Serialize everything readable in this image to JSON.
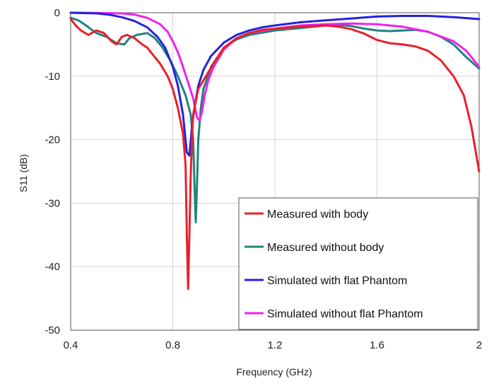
{
  "chart_data": {
    "type": "line",
    "title": "",
    "xlabel": "Frequency (GHz)",
    "ylabel": "S11 (dB)",
    "xlim": [
      0.4,
      2.0
    ],
    "ylim": [
      -50,
      0
    ],
    "xticks": [
      0.4,
      0.8,
      1.2,
      1.6,
      2.0
    ],
    "xtick_labels": [
      "0.4",
      "0.8",
      "1.2",
      "1.6",
      "2"
    ],
    "yticks": [
      0,
      -10,
      -20,
      -30,
      -40,
      -50
    ],
    "ytick_labels": [
      "0",
      "-10",
      "-20",
      "-30",
      "-40",
      "-50"
    ],
    "grid": true,
    "legend_position": "bottom-right",
    "series": [
      {
        "name": "Measured with body",
        "color": "#e8202a",
        "x": [
          0.4,
          0.42,
          0.44,
          0.47,
          0.5,
          0.53,
          0.56,
          0.58,
          0.6,
          0.62,
          0.65,
          0.68,
          0.7,
          0.72,
          0.75,
          0.78,
          0.8,
          0.82,
          0.84,
          0.85,
          0.855,
          0.86,
          0.865,
          0.87,
          0.875,
          0.88,
          0.9,
          0.93,
          0.96,
          1.0,
          1.05,
          1.1,
          1.15,
          1.2,
          1.3,
          1.4,
          1.45,
          1.5,
          1.55,
          1.6,
          1.65,
          1.7,
          1.75,
          1.8,
          1.85,
          1.9,
          1.94,
          1.97,
          2.0
        ],
        "y": [
          -1.0,
          -2.0,
          -2.8,
          -3.5,
          -2.8,
          -3.2,
          -4.5,
          -5.0,
          -3.8,
          -3.5,
          -4.0,
          -5.0,
          -5.5,
          -6.5,
          -8.0,
          -10.0,
          -12.0,
          -15.0,
          -19.0,
          -24.0,
          -35.0,
          -43.5,
          -35.0,
          -26.0,
          -20.0,
          -16.0,
          -12.0,
          -10.0,
          -8.0,
          -5.5,
          -4.0,
          -3.2,
          -2.7,
          -2.5,
          -2.2,
          -2.0,
          -2.2,
          -2.6,
          -3.3,
          -4.3,
          -4.8,
          -5.0,
          -5.3,
          -6.0,
          -7.5,
          -10.0,
          -13.0,
          -18.0,
          -25.0
        ]
      },
      {
        "name": "Measured without body",
        "color": "#20837d",
        "x": [
          0.4,
          0.43,
          0.46,
          0.5,
          0.54,
          0.58,
          0.61,
          0.63,
          0.66,
          0.7,
          0.73,
          0.76,
          0.79,
          0.82,
          0.85,
          0.87,
          0.88,
          0.885,
          0.89,
          0.895,
          0.9,
          0.91,
          0.92,
          0.95,
          1.0,
          1.05,
          1.1,
          1.2,
          1.3,
          1.4,
          1.45,
          1.5,
          1.55,
          1.6,
          1.65,
          1.7,
          1.75,
          1.8,
          1.85,
          1.9,
          1.95,
          2.0
        ],
        "y": [
          -0.8,
          -1.2,
          -2.0,
          -3.2,
          -3.8,
          -4.8,
          -5.0,
          -4.0,
          -3.5,
          -3.2,
          -4.0,
          -5.5,
          -7.5,
          -10.0,
          -13.0,
          -16.0,
          -20.0,
          -27.0,
          -33.0,
          -27.0,
          -20.0,
          -15.0,
          -12.0,
          -8.5,
          -5.5,
          -4.2,
          -3.5,
          -2.8,
          -2.4,
          -2.0,
          -1.9,
          -2.1,
          -2.5,
          -2.8,
          -2.9,
          -2.8,
          -2.7,
          -3.0,
          -3.8,
          -5.0,
          -7.0,
          -8.8
        ]
      },
      {
        "name": "Simulated with flat Phantom",
        "color": "#2222e0",
        "x": [
          0.4,
          0.5,
          0.55,
          0.6,
          0.65,
          0.7,
          0.74,
          0.77,
          0.8,
          0.82,
          0.84,
          0.855,
          0.865,
          0.875,
          0.885,
          0.9,
          0.92,
          0.95,
          1.0,
          1.05,
          1.1,
          1.15,
          1.2,
          1.3,
          1.4,
          1.5,
          1.6,
          1.7,
          1.8,
          1.9,
          2.0
        ],
        "y": [
          0.0,
          -0.1,
          -0.3,
          -0.7,
          -1.3,
          -2.3,
          -3.8,
          -5.5,
          -8.5,
          -11.5,
          -16.0,
          -22.0,
          -22.5,
          -18.0,
          -15.0,
          -11.5,
          -9.0,
          -6.8,
          -4.7,
          -3.5,
          -2.8,
          -2.3,
          -2.0,
          -1.5,
          -1.2,
          -0.9,
          -0.6,
          -0.5,
          -0.5,
          -0.7,
          -1.0
        ]
      },
      {
        "name": "Simulated without flat Phantom",
        "color": "#ee22ee",
        "x": [
          0.4,
          0.5,
          0.6,
          0.65,
          0.7,
          0.75,
          0.78,
          0.8,
          0.82,
          0.84,
          0.86,
          0.88,
          0.895,
          0.905,
          0.915,
          0.925,
          0.94,
          0.96,
          1.0,
          1.05,
          1.1,
          1.2,
          1.3,
          1.4,
          1.5,
          1.6,
          1.7,
          1.8,
          1.9,
          1.95,
          2.0
        ],
        "y": [
          0.0,
          -0.05,
          -0.1,
          -0.3,
          -0.8,
          -1.8,
          -3.0,
          -4.5,
          -6.2,
          -8.5,
          -11.0,
          -13.5,
          -16.5,
          -17.0,
          -15.5,
          -13.0,
          -10.5,
          -8.5,
          -5.8,
          -4.0,
          -3.2,
          -2.5,
          -2.0,
          -1.8,
          -1.7,
          -1.8,
          -2.2,
          -3.0,
          -4.5,
          -6.0,
          -8.5
        ]
      }
    ]
  }
}
